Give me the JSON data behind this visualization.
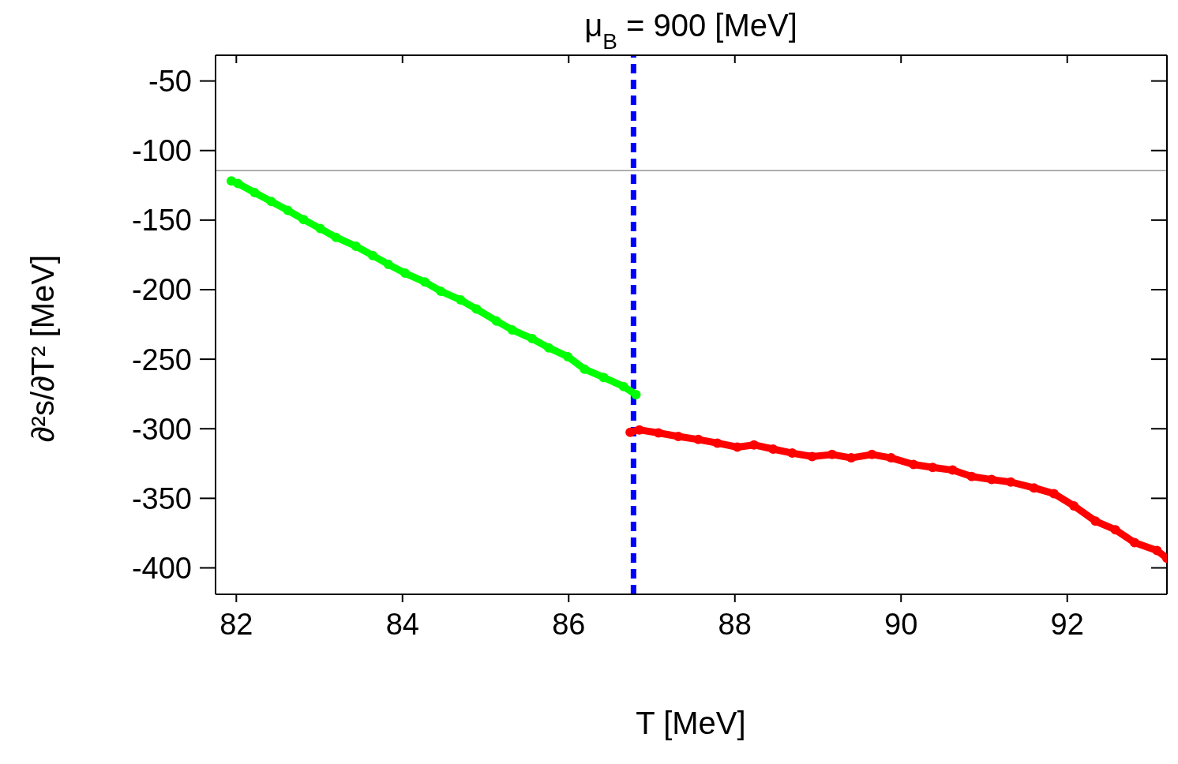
{
  "chart_data": {
    "type": "line",
    "title": "μ$_{B}$ = 900 [MeV]",
    "xlabel": "T [MeV]",
    "ylabel": "∂²s/∂T² [MeV]",
    "xlim": [
      81.75,
      93.2
    ],
    "ylim": [
      -419,
      -31.5
    ],
    "xticks": [
      82,
      84,
      86,
      88,
      90,
      92
    ],
    "yticks": [
      -400,
      -350,
      -300,
      -250,
      -200,
      -150,
      -100,
      -50
    ],
    "grid": false,
    "legend": false,
    "marker": "circle",
    "line_style": "solid",
    "series": [
      {
        "color": "#00ff00",
        "x": [
          81.94,
          82.02,
          82.22,
          82.42,
          82.62,
          82.81,
          83.01,
          83.2,
          83.44,
          83.64,
          83.83,
          84.03,
          84.27,
          84.46,
          84.7,
          84.89,
          85.13,
          85.32,
          85.56,
          85.76,
          85.99,
          86.19,
          86.42,
          86.66,
          86.81
        ],
        "values": [
          -121.9,
          -123.7,
          -130.2,
          -136.6,
          -143.0,
          -149.6,
          -156.1,
          -162.4,
          -168.8,
          -175.4,
          -181.8,
          -188.1,
          -194.5,
          -201.1,
          -207.4,
          -213.9,
          -222.5,
          -228.9,
          -235.2,
          -241.8,
          -248.2,
          -257.1,
          -263.1,
          -269.6,
          -275.4
        ]
      },
      {
        "color": "#ff0000",
        "x": [
          86.74,
          86.85,
          87.08,
          87.32,
          87.56,
          87.79,
          88.03,
          88.23,
          88.46,
          88.69,
          88.93,
          89.17,
          89.4,
          89.65,
          89.88,
          90.15,
          90.38,
          90.62,
          90.85,
          91.09,
          91.32,
          91.6,
          91.84,
          92.08,
          92.34,
          92.58,
          92.81,
          93.08,
          93.2
        ],
        "values": [
          -302.5,
          -300.8,
          -303.0,
          -305.5,
          -307.7,
          -310.3,
          -313.2,
          -311.6,
          -314.6,
          -317.5,
          -320.0,
          -318.5,
          -320.9,
          -318.5,
          -320.9,
          -325.7,
          -327.8,
          -329.7,
          -334.3,
          -336.5,
          -338.3,
          -342.5,
          -346.6,
          -355.4,
          -366.4,
          -372.6,
          -381.8,
          -387.5,
          -393.0
        ]
      }
    ],
    "ref_lines": [
      {
        "axis": "y",
        "value": -114.4,
        "color": "#808080",
        "line_style": "solid"
      },
      {
        "axis": "x",
        "value": 86.78,
        "color": "#0000ff",
        "line_style": "dashed"
      }
    ]
  }
}
